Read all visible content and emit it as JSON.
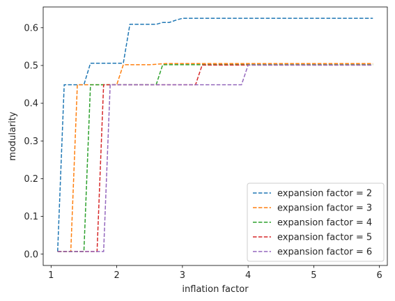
{
  "chart_data": {
    "type": "line",
    "title": "",
    "xlabel": "inflation factor",
    "ylabel": "modularity",
    "xlim": [
      0.88,
      6.12
    ],
    "ylim": [
      -0.03,
      0.655
    ],
    "xticks": [
      1,
      2,
      3,
      4,
      5,
      6
    ],
    "yticks": [
      0.0,
      0.1,
      0.2,
      0.3,
      0.4,
      0.5,
      0.6
    ],
    "ytick_labels": [
      "0.0",
      "0.1",
      "0.2",
      "0.3",
      "0.4",
      "0.5",
      "0.6"
    ],
    "grid": false,
    "line_style": "dashed",
    "legend_location": "lower-right",
    "series": [
      {
        "name": "expansion factor = 2",
        "color": "#1f77b4",
        "x": [
          1.1,
          1.2,
          1.3,
          1.4,
          1.5,
          1.6,
          1.7,
          1.8,
          1.9,
          2.0,
          2.1,
          2.2,
          2.3,
          2.4,
          2.5,
          2.6,
          2.7,
          2.8,
          2.9,
          3.0,
          3.1,
          3.2,
          3.5,
          4.0,
          4.5,
          5.0,
          5.5,
          5.9
        ],
        "y": [
          0.007,
          0.449,
          0.449,
          0.449,
          0.449,
          0.506,
          0.506,
          0.506,
          0.506,
          0.506,
          0.506,
          0.609,
          0.609,
          0.609,
          0.609,
          0.609,
          0.614,
          0.614,
          0.62,
          0.625,
          0.625,
          0.625,
          0.625,
          0.625,
          0.625,
          0.625,
          0.625,
          0.625
        ]
      },
      {
        "name": "expansion factor = 3",
        "color": "#ff7f0e",
        "x": [
          1.1,
          1.2,
          1.3,
          1.4,
          1.5,
          1.6,
          1.7,
          1.8,
          1.9,
          2.0,
          2.1,
          2.2,
          2.5,
          2.75,
          3.0,
          3.5,
          4.0,
          4.5,
          5.0,
          5.5,
          5.9
        ],
        "y": [
          0.007,
          0.007,
          0.007,
          0.449,
          0.449,
          0.449,
          0.449,
          0.449,
          0.449,
          0.449,
          0.502,
          0.502,
          0.502,
          0.505,
          0.505,
          0.505,
          0.505,
          0.505,
          0.505,
          0.505,
          0.505
        ]
      },
      {
        "name": "expansion factor = 4",
        "color": "#2ca02c",
        "x": [
          1.1,
          1.2,
          1.3,
          1.4,
          1.5,
          1.6,
          1.7,
          1.8,
          1.9,
          2.0,
          2.3,
          2.6,
          2.7,
          2.8,
          3.0,
          3.5,
          4.0,
          4.5,
          5.0,
          5.5,
          5.9
        ],
        "y": [
          0.007,
          0.007,
          0.007,
          0.007,
          0.007,
          0.449,
          0.449,
          0.449,
          0.449,
          0.449,
          0.449,
          0.449,
          0.502,
          0.502,
          0.502,
          0.502,
          0.502,
          0.502,
          0.502,
          0.502,
          0.502
        ]
      },
      {
        "name": "expansion factor = 5",
        "color": "#d62728",
        "x": [
          1.1,
          1.2,
          1.3,
          1.4,
          1.5,
          1.6,
          1.7,
          1.8,
          1.9,
          2.0,
          2.5,
          3.0,
          3.2,
          3.3,
          3.5,
          4.0,
          4.5,
          5.0,
          5.5,
          5.9
        ],
        "y": [
          0.007,
          0.007,
          0.007,
          0.007,
          0.007,
          0.007,
          0.007,
          0.449,
          0.449,
          0.449,
          0.449,
          0.449,
          0.449,
          0.501,
          0.501,
          0.501,
          0.501,
          0.501,
          0.501,
          0.501
        ]
      },
      {
        "name": "expansion factor = 6",
        "color": "#9467bd",
        "x": [
          1.1,
          1.2,
          1.3,
          1.4,
          1.5,
          1.6,
          1.7,
          1.8,
          1.9,
          2.0,
          2.5,
          3.0,
          3.5,
          3.9,
          4.0,
          4.5,
          5.0,
          5.5,
          5.9
        ],
        "y": [
          0.007,
          0.007,
          0.007,
          0.007,
          0.007,
          0.007,
          0.007,
          0.007,
          0.449,
          0.449,
          0.449,
          0.449,
          0.449,
          0.449,
          0.501,
          0.501,
          0.501,
          0.501,
          0.501
        ]
      }
    ]
  }
}
